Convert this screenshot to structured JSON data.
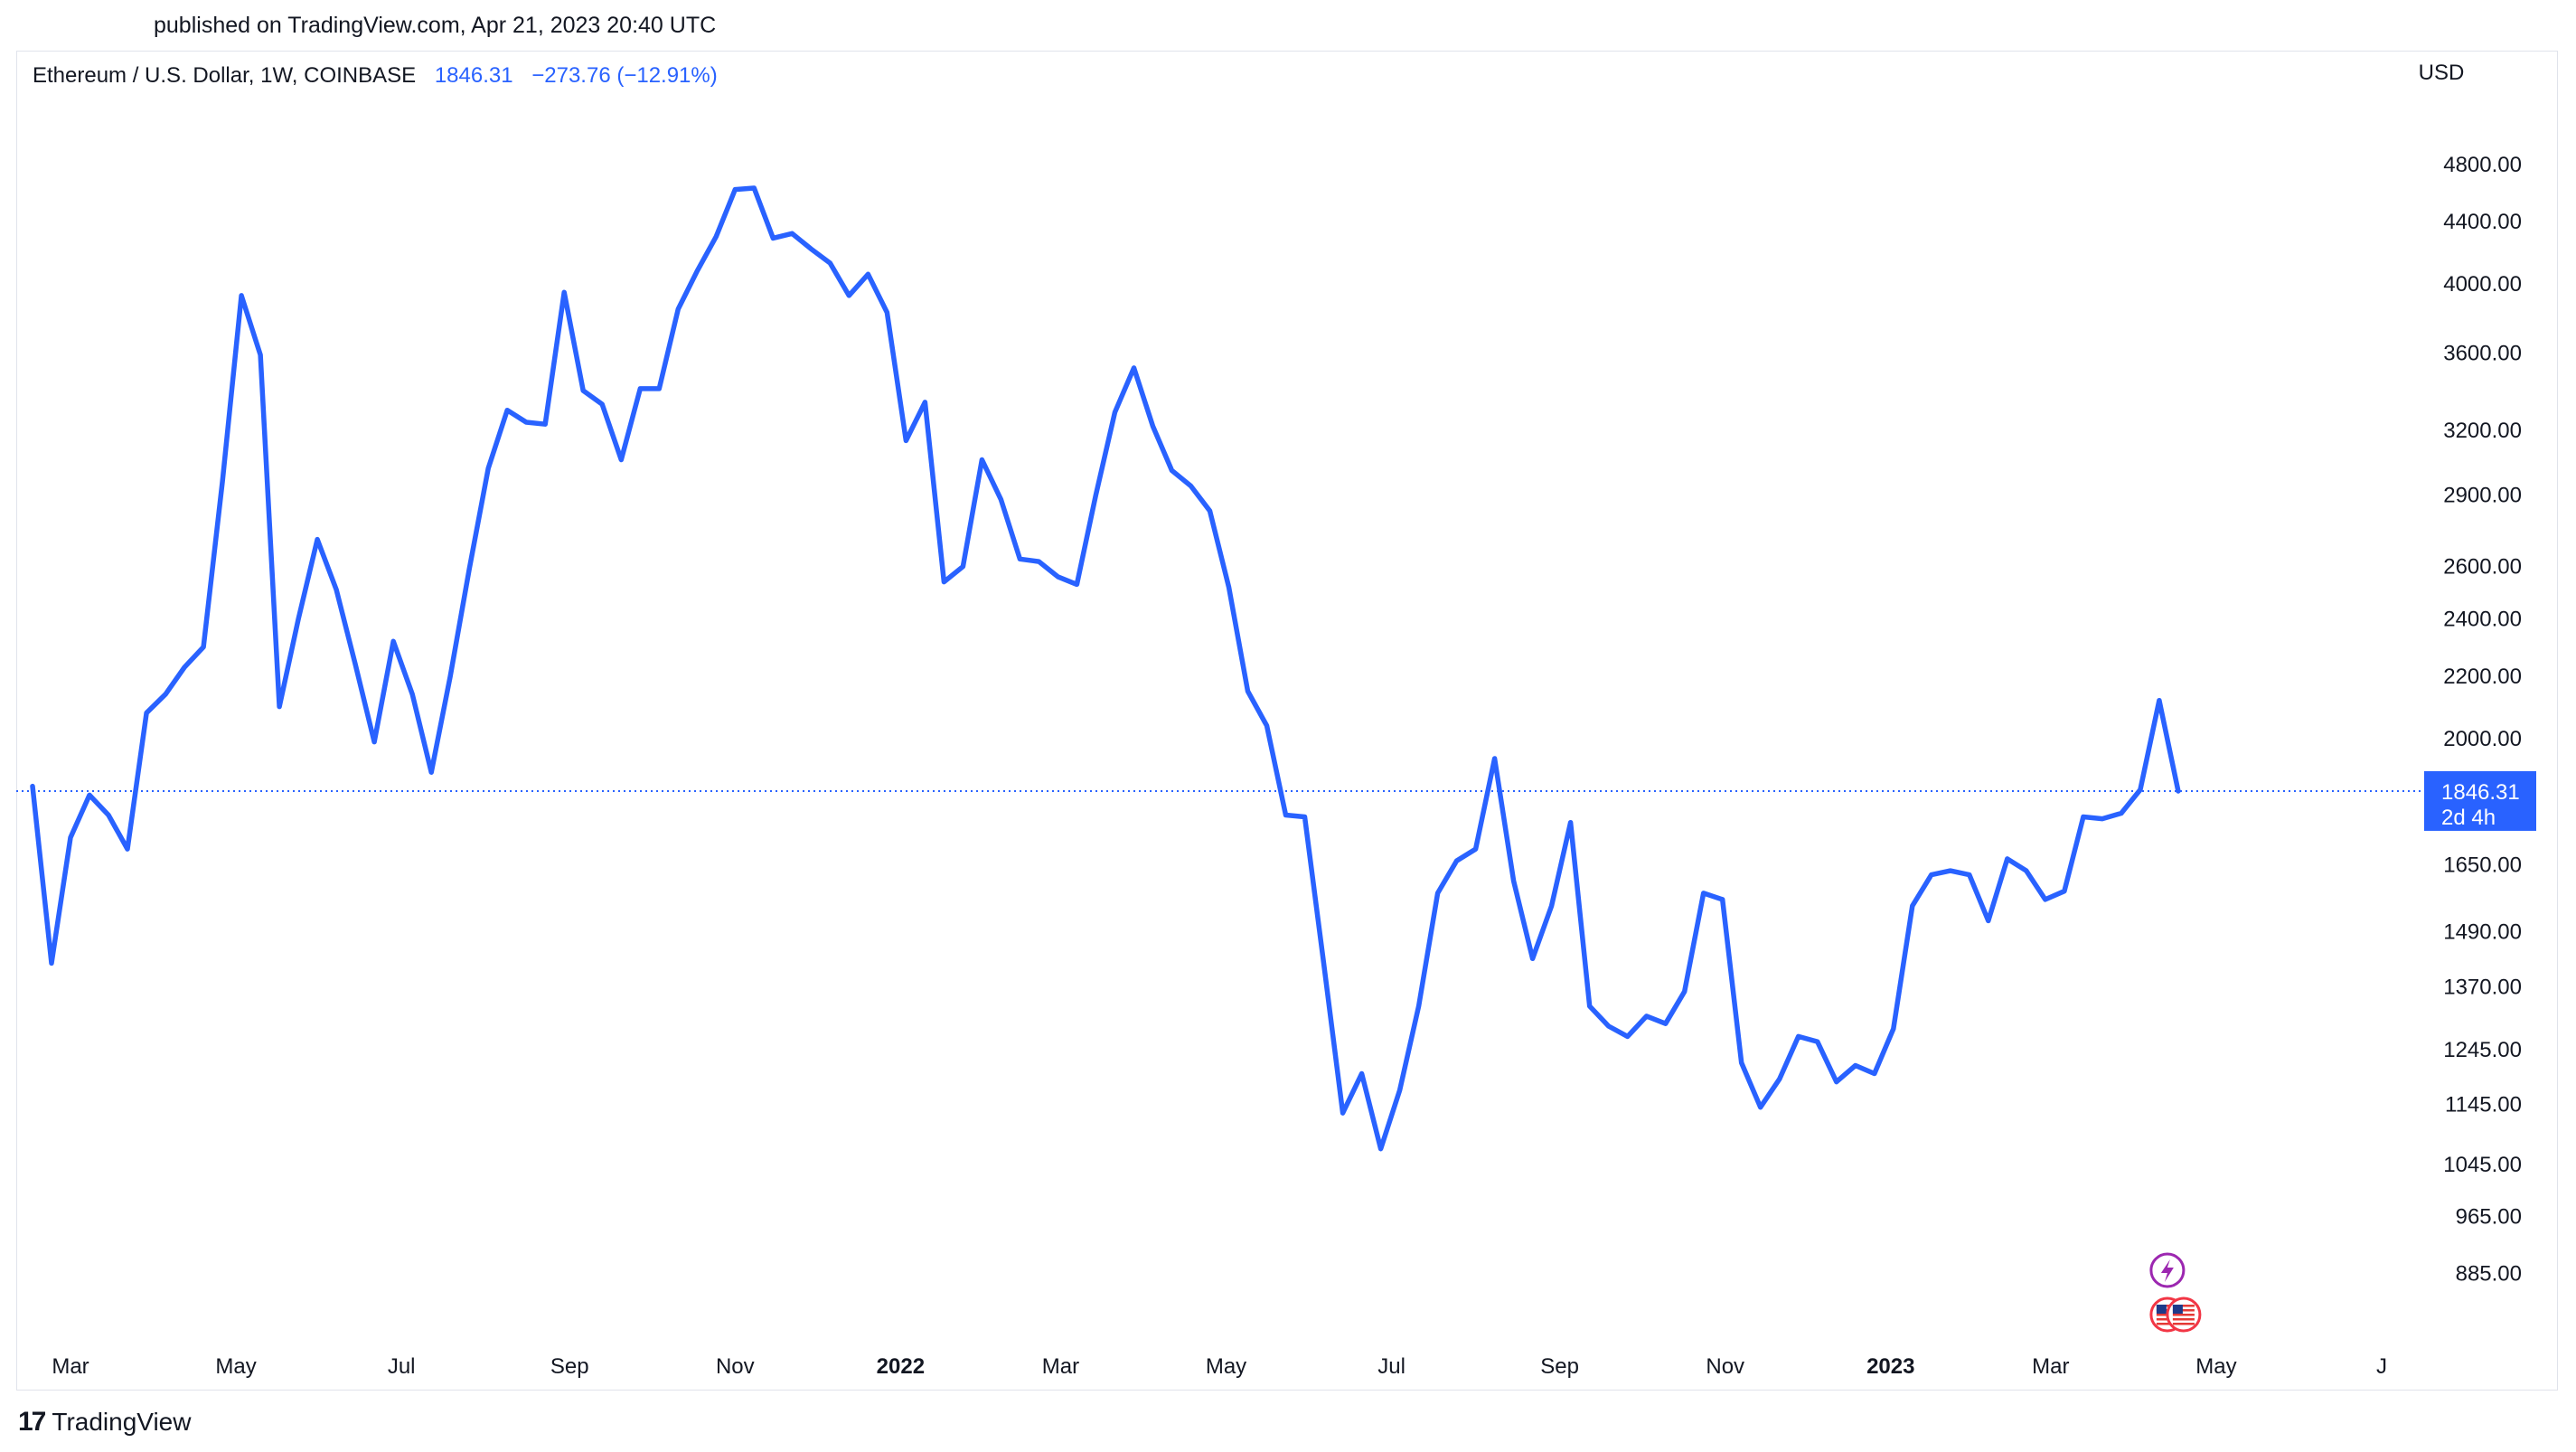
{
  "header": {
    "published": "published on TradingView.com, Apr 21, 2023 20:40 UTC"
  },
  "legend": {
    "symbol": "Ethereum / U.S. Dollar, 1W, COINBASE",
    "last": "1846.31",
    "change": "−273.76 (−12.91%)"
  },
  "footer": {
    "brand": "TradingView",
    "logo": "tradingview-logo"
  },
  "colors": {
    "line": "#2962ff",
    "price_label_bg": "#2962ff",
    "text": "#131722",
    "axis_text": "#131722"
  },
  "chart_data": {
    "type": "line",
    "series_label": "ETHUSD weekly close",
    "currency": "USD",
    "y_scale": "log",
    "ylim": [
      780,
      5300
    ],
    "y_ticks": [
      "4800.00",
      "4400.00",
      "4000.00",
      "3600.00",
      "3200.00",
      "2900.00",
      "2600.00",
      "2400.00",
      "2200.00",
      "2000.00",
      "1650.00",
      "1490.00",
      "1370.00",
      "1245.00",
      "1145.00",
      "1045.00",
      "965.00",
      "885.00"
    ],
    "x_ticks": [
      {
        "label": "Mar",
        "date": "2021-03-01",
        "bold": false
      },
      {
        "label": "May",
        "date": "2021-05-01",
        "bold": false
      },
      {
        "label": "Jul",
        "date": "2021-07-01",
        "bold": false
      },
      {
        "label": "Sep",
        "date": "2021-09-01",
        "bold": false
      },
      {
        "label": "Nov",
        "date": "2021-11-01",
        "bold": false
      },
      {
        "label": "2022",
        "date": "2022-01-01",
        "bold": true
      },
      {
        "label": "Mar",
        "date": "2022-03-01",
        "bold": false
      },
      {
        "label": "May",
        "date": "2022-05-01",
        "bold": false
      },
      {
        "label": "Jul",
        "date": "2022-07-01",
        "bold": false
      },
      {
        "label": "Sep",
        "date": "2022-09-01",
        "bold": false
      },
      {
        "label": "Nov",
        "date": "2022-11-01",
        "bold": false
      },
      {
        "label": "2023",
        "date": "2023-01-01",
        "bold": true
      },
      {
        "label": "Mar",
        "date": "2023-03-01",
        "bold": false
      },
      {
        "label": "May",
        "date": "2023-05-01",
        "bold": false
      },
      {
        "label": "J",
        "date": "2023-07-01",
        "bold": false
      }
    ],
    "x_domain": [
      "2021-02-09",
      "2023-07-16"
    ],
    "last_price": {
      "value": 1846.31,
      "label": "1846.31",
      "countdown": "2d 4h"
    },
    "events": [
      {
        "date": "2023-04-13",
        "kind": "lightning"
      },
      {
        "date": "2023-04-13",
        "kind": "us-flag"
      },
      {
        "date": "2023-04-19",
        "kind": "us-flag"
      }
    ],
    "points": [
      {
        "x": "2021-02-15",
        "y": 1860
      },
      {
        "x": "2021-02-22",
        "y": 1420
      },
      {
        "x": "2021-03-01",
        "y": 1720
      },
      {
        "x": "2021-03-08",
        "y": 1835
      },
      {
        "x": "2021-03-15",
        "y": 1780
      },
      {
        "x": "2021-03-22",
        "y": 1690
      },
      {
        "x": "2021-03-29",
        "y": 2080
      },
      {
        "x": "2021-04-05",
        "y": 2140
      },
      {
        "x": "2021-04-12",
        "y": 2230
      },
      {
        "x": "2021-04-19",
        "y": 2300
      },
      {
        "x": "2021-04-26",
        "y": 2960
      },
      {
        "x": "2021-05-03",
        "y": 3930
      },
      {
        "x": "2021-05-10",
        "y": 3590
      },
      {
        "x": "2021-05-17",
        "y": 2100
      },
      {
        "x": "2021-05-24",
        "y": 2400
      },
      {
        "x": "2021-05-31",
        "y": 2710
      },
      {
        "x": "2021-06-07",
        "y": 2510
      },
      {
        "x": "2021-06-14",
        "y": 2240
      },
      {
        "x": "2021-06-21",
        "y": 1990
      },
      {
        "x": "2021-06-28",
        "y": 2320
      },
      {
        "x": "2021-07-05",
        "y": 2140
      },
      {
        "x": "2021-07-12",
        "y": 1900
      },
      {
        "x": "2021-07-19",
        "y": 2200
      },
      {
        "x": "2021-07-26",
        "y": 2590
      },
      {
        "x": "2021-08-02",
        "y": 3020
      },
      {
        "x": "2021-08-09",
        "y": 3300
      },
      {
        "x": "2021-08-16",
        "y": 3240
      },
      {
        "x": "2021-08-23",
        "y": 3230
      },
      {
        "x": "2021-08-30",
        "y": 3950
      },
      {
        "x": "2021-09-06",
        "y": 3400
      },
      {
        "x": "2021-09-13",
        "y": 3330
      },
      {
        "x": "2021-09-20",
        "y": 3060
      },
      {
        "x": "2021-09-27",
        "y": 3410
      },
      {
        "x": "2021-10-04",
        "y": 3410
      },
      {
        "x": "2021-10-11",
        "y": 3850
      },
      {
        "x": "2021-10-18",
        "y": 4080
      },
      {
        "x": "2021-10-25",
        "y": 4300
      },
      {
        "x": "2021-11-01",
        "y": 4620
      },
      {
        "x": "2021-11-08",
        "y": 4630
      },
      {
        "x": "2021-11-15",
        "y": 4290
      },
      {
        "x": "2021-11-22",
        "y": 4320
      },
      {
        "x": "2021-11-29",
        "y": 4220
      },
      {
        "x": "2021-12-06",
        "y": 4130
      },
      {
        "x": "2021-12-13",
        "y": 3930
      },
      {
        "x": "2021-12-20",
        "y": 4060
      },
      {
        "x": "2021-12-27",
        "y": 3830
      },
      {
        "x": "2022-01-03",
        "y": 3150
      },
      {
        "x": "2022-01-10",
        "y": 3340
      },
      {
        "x": "2022-01-17",
        "y": 2540
      },
      {
        "x": "2022-01-24",
        "y": 2600
      },
      {
        "x": "2022-01-31",
        "y": 3060
      },
      {
        "x": "2022-02-07",
        "y": 2880
      },
      {
        "x": "2022-02-14",
        "y": 2630
      },
      {
        "x": "2022-02-21",
        "y": 2620
      },
      {
        "x": "2022-02-28",
        "y": 2560
      },
      {
        "x": "2022-03-07",
        "y": 2530
      },
      {
        "x": "2022-03-14",
        "y": 2900
      },
      {
        "x": "2022-03-21",
        "y": 3290
      },
      {
        "x": "2022-03-28",
        "y": 3520
      },
      {
        "x": "2022-04-04",
        "y": 3220
      },
      {
        "x": "2022-04-11",
        "y": 3010
      },
      {
        "x": "2022-04-18",
        "y": 2940
      },
      {
        "x": "2022-04-25",
        "y": 2830
      },
      {
        "x": "2022-05-02",
        "y": 2520
      },
      {
        "x": "2022-05-09",
        "y": 2150
      },
      {
        "x": "2022-05-16",
        "y": 2040
      },
      {
        "x": "2022-05-23",
        "y": 1780
      },
      {
        "x": "2022-05-30",
        "y": 1775
      },
      {
        "x": "2022-06-06",
        "y": 1420
      },
      {
        "x": "2022-06-13",
        "y": 1130
      },
      {
        "x": "2022-06-20",
        "y": 1200
      },
      {
        "x": "2022-06-27",
        "y": 1070
      },
      {
        "x": "2022-07-04",
        "y": 1170
      },
      {
        "x": "2022-07-11",
        "y": 1330
      },
      {
        "x": "2022-07-18",
        "y": 1580
      },
      {
        "x": "2022-07-25",
        "y": 1660
      },
      {
        "x": "2022-08-01",
        "y": 1690
      },
      {
        "x": "2022-08-08",
        "y": 1940
      },
      {
        "x": "2022-08-15",
        "y": 1610
      },
      {
        "x": "2022-08-22",
        "y": 1430
      },
      {
        "x": "2022-08-29",
        "y": 1550
      },
      {
        "x": "2022-09-05",
        "y": 1760
      },
      {
        "x": "2022-09-12",
        "y": 1330
      },
      {
        "x": "2022-09-19",
        "y": 1290
      },
      {
        "x": "2022-09-26",
        "y": 1270
      },
      {
        "x": "2022-10-03",
        "y": 1310
      },
      {
        "x": "2022-10-10",
        "y": 1295
      },
      {
        "x": "2022-10-17",
        "y": 1360
      },
      {
        "x": "2022-10-24",
        "y": 1580
      },
      {
        "x": "2022-10-31",
        "y": 1565
      },
      {
        "x": "2022-11-07",
        "y": 1220
      },
      {
        "x": "2022-11-14",
        "y": 1140
      },
      {
        "x": "2022-11-21",
        "y": 1190
      },
      {
        "x": "2022-11-28",
        "y": 1270
      },
      {
        "x": "2022-12-05",
        "y": 1260
      },
      {
        "x": "2022-12-12",
        "y": 1185
      },
      {
        "x": "2022-12-19",
        "y": 1215
      },
      {
        "x": "2022-12-26",
        "y": 1200
      },
      {
        "x": "2023-01-02",
        "y": 1285
      },
      {
        "x": "2023-01-09",
        "y": 1550
      },
      {
        "x": "2023-01-16",
        "y": 1625
      },
      {
        "x": "2023-01-23",
        "y": 1635
      },
      {
        "x": "2023-01-30",
        "y": 1625
      },
      {
        "x": "2023-02-06",
        "y": 1515
      },
      {
        "x": "2023-02-13",
        "y": 1665
      },
      {
        "x": "2023-02-20",
        "y": 1635
      },
      {
        "x": "2023-02-27",
        "y": 1565
      },
      {
        "x": "2023-03-06",
        "y": 1585
      },
      {
        "x": "2023-03-13",
        "y": 1775
      },
      {
        "x": "2023-03-20",
        "y": 1770
      },
      {
        "x": "2023-03-27",
        "y": 1785
      },
      {
        "x": "2023-04-03",
        "y": 1850
      },
      {
        "x": "2023-04-10",
        "y": 2120
      },
      {
        "x": "2023-04-17",
        "y": 1846.31
      }
    ]
  }
}
